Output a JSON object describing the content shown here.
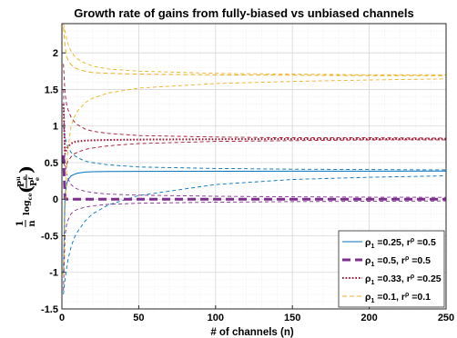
{
  "chart_data": {
    "type": "line",
    "title": "Growth rate of gains from fully-biased vs unbiased channels",
    "xlabel": "# of channels (n)",
    "ylabel": {
      "prefix_num": "1",
      "prefix_den": "n",
      "log": "log",
      "log_sub": "ce",
      "frac_num": "P",
      "frac_num_sup": "u",
      "frac_num_sub": "e",
      "frac_den": "P",
      "frac_den_sup": "f",
      "frac_den_sub": "e"
    },
    "xlim": [
      0,
      250
    ],
    "ylim": [
      -1.5,
      2.4
    ],
    "xticks": [
      "0",
      "50",
      "100",
      "150",
      "200",
      "250"
    ],
    "yticks": [
      "-1.5",
      "-1",
      "-0.5",
      "0",
      "0.5",
      "1",
      "1.5",
      "2"
    ],
    "grid": true,
    "minor_grid": true,
    "legend_position": "bottom-right",
    "series": [
      {
        "name": "ρ1 =0.25, rρ =0.5",
        "legend": {
          "rho": "ρ",
          "rho_sub": "1",
          "rho_val": " =0.25, r",
          "r_sup": "ρ",
          "r_val": " =0.5"
        },
        "color": "#0072bd",
        "style": "solid",
        "width": 1,
        "x": [
          1,
          2,
          3,
          4,
          6,
          8,
          10,
          15,
          20,
          30,
          50,
          100,
          150,
          200,
          250
        ],
        "value": [
          -1.0,
          0.05,
          0.2,
          0.27,
          0.32,
          0.34,
          0.355,
          0.37,
          0.375,
          0.378,
          0.38,
          0.382,
          0.383,
          0.383,
          0.384
        ],
        "upper": [
          1.0,
          0.85,
          0.76,
          0.71,
          0.64,
          0.6,
          0.57,
          0.52,
          0.5,
          0.47,
          0.44,
          0.42,
          0.41,
          0.405,
          0.4
        ],
        "lower": [
          -1.3,
          -1.1,
          -0.95,
          -0.82,
          -0.65,
          -0.53,
          -0.45,
          -0.3,
          -0.2,
          -0.08,
          0.05,
          0.2,
          0.27,
          0.3,
          0.32
        ]
      },
      {
        "name": "ρ1 =0.5, rρ =0.5",
        "legend": {
          "rho": "ρ",
          "rho_sub": "1",
          "rho_val": " =0.5, r",
          "r_sup": "ρ",
          "r_val": " =0.5"
        },
        "color": "#7e2f8e",
        "style": "dash-thick",
        "width": 3,
        "x": [
          1,
          2,
          3,
          4,
          6,
          8,
          10,
          15,
          20,
          30,
          50,
          100,
          150,
          200,
          250
        ],
        "value": [
          0.6,
          0.02,
          0.0,
          0.0,
          0.0,
          0.0,
          0.0,
          0.0,
          0.0,
          0.0,
          0.0,
          0.0,
          0.0,
          0.0,
          0.0
        ],
        "upper": [
          1.5,
          0.5,
          0.35,
          0.28,
          0.2,
          0.16,
          0.14,
          0.11,
          0.09,
          0.07,
          0.055,
          0.04,
          0.033,
          0.028,
          0.025
        ],
        "lower": [
          -1.25,
          -0.5,
          -0.35,
          -0.28,
          -0.2,
          -0.16,
          -0.14,
          -0.11,
          -0.09,
          -0.07,
          -0.055,
          -0.04,
          -0.033,
          -0.028,
          -0.025
        ]
      },
      {
        "name": "ρ1 =0.33, rρ =0.25",
        "legend": {
          "rho": "ρ",
          "rho_sub": "1",
          "rho_val": " =0.33, r",
          "r_sup": "ρ",
          "r_val": " =0.25"
        },
        "color": "#a2142f",
        "style": "dotted",
        "width": 2,
        "x": [
          1,
          2,
          3,
          4,
          6,
          8,
          10,
          15,
          20,
          30,
          50,
          100,
          150,
          200,
          250
        ],
        "value": [
          1.3,
          0.62,
          0.68,
          0.72,
          0.76,
          0.78,
          0.79,
          0.8,
          0.805,
          0.81,
          0.815,
          0.82,
          0.822,
          0.823,
          0.824
        ],
        "upper": [
          1.85,
          1.45,
          1.3,
          1.22,
          1.12,
          1.06,
          1.02,
          0.96,
          0.93,
          0.9,
          0.87,
          0.85,
          0.84,
          0.84,
          0.835
        ],
        "lower": [
          0.5,
          0.45,
          0.48,
          0.52,
          0.58,
          0.62,
          0.64,
          0.68,
          0.7,
          0.73,
          0.76,
          0.79,
          0.8,
          0.81,
          0.812
        ]
      },
      {
        "name": "ρ1 =0.1, rρ =0.1",
        "legend": {
          "rho": "ρ",
          "rho_sub": "1",
          "rho_val": " =0.1, r",
          "r_sup": "ρ",
          "r_val": " =0.1"
        },
        "color": "#edb120",
        "style": "dashed",
        "width": 1,
        "x": [
          1,
          2,
          3,
          4,
          6,
          8,
          10,
          15,
          20,
          30,
          50,
          100,
          150,
          200,
          250
        ],
        "value": [
          2.35,
          2.1,
          1.95,
          1.9,
          1.84,
          1.8,
          1.78,
          1.75,
          1.73,
          1.72,
          1.71,
          1.7,
          1.695,
          1.69,
          1.69
        ],
        "upper": [
          2.4,
          2.3,
          2.2,
          2.12,
          2.02,
          1.96,
          1.92,
          1.86,
          1.82,
          1.78,
          1.75,
          1.72,
          1.71,
          1.7,
          1.7
        ],
        "lower": [
          -1.05,
          -0.2,
          0.4,
          0.7,
          1.0,
          1.12,
          1.2,
          1.32,
          1.38,
          1.45,
          1.52,
          1.58,
          1.61,
          1.63,
          1.645
        ]
      }
    ]
  }
}
